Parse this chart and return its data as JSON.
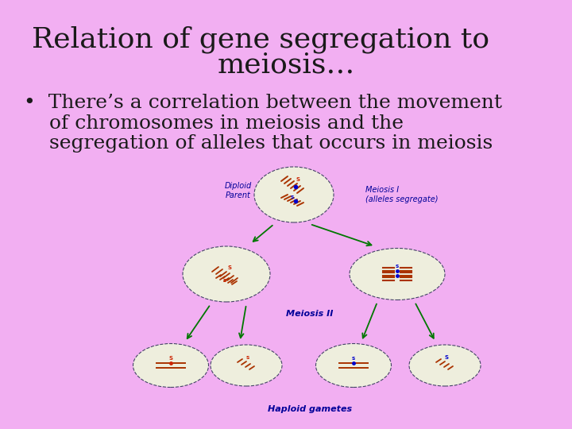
{
  "bg_color": "#f2aff2",
  "title_line1": "Relation of gene segregation to",
  "title_line2": "meiosis…",
  "title_fontsize": 26,
  "title_color": "#1a1a1a",
  "bullet_line1": "•  There’s a correlation between the movement",
  "bullet_line2": "    of chromosomes in meiosis and the",
  "bullet_line3": "    segregation of alleles that occurs in meiosis",
  "bullet_fontsize": 18,
  "bullet_color": "#1a1a1a",
  "label_diploid": "Diploid\nParent",
  "label_meiosis1": "Meiosis I\n(alleles segregate)",
  "label_meiosis2": "Meiosis II",
  "label_haploid": "Haploid gametes",
  "label_color": "#000099",
  "label_fontsize": 7,
  "arrow_color": "#007700",
  "cell_bg": "#eeeedd",
  "cell_edge": "#444466"
}
